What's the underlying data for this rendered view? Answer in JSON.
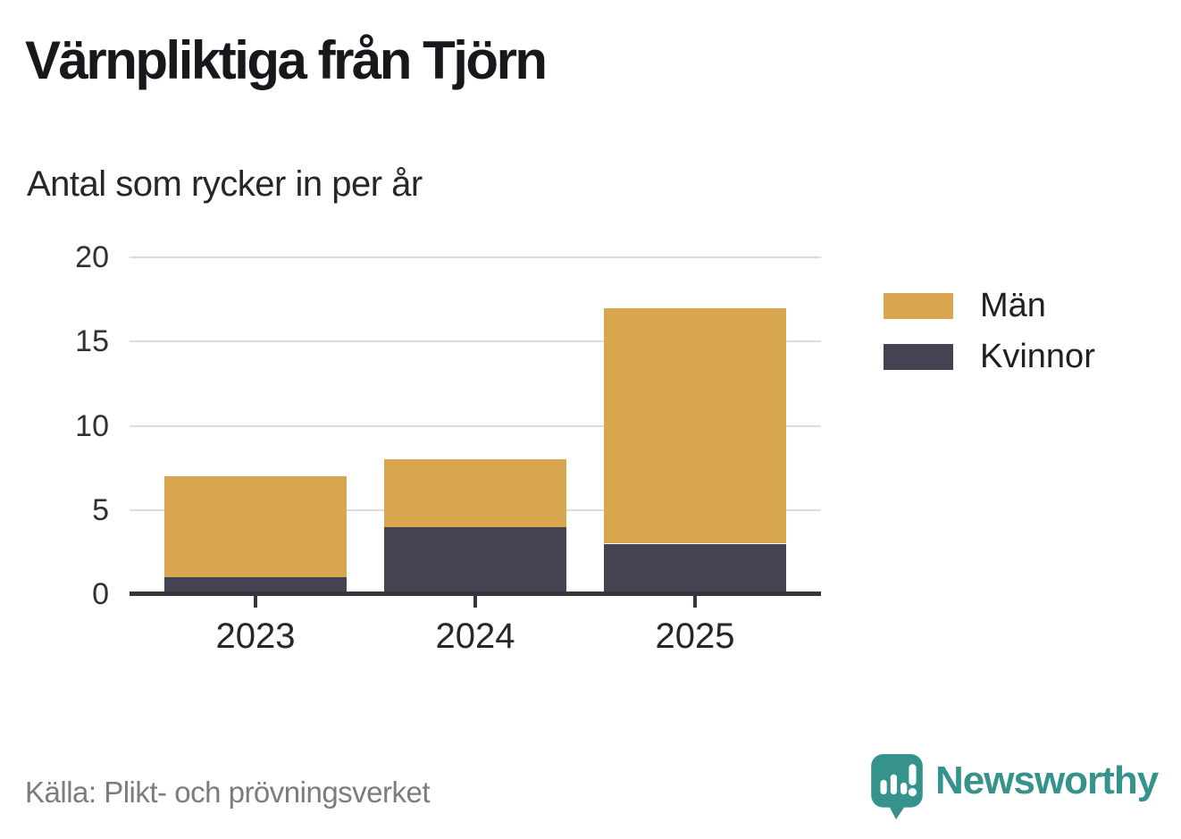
{
  "title": "Värnpliktiga från Tjörn",
  "subtitle": "Antal som rycker in per år",
  "source": "Källa: Plikt- och prövningsverket",
  "brand": {
    "name": "Newsworthy",
    "color": "#35938b",
    "logo_icon": "speech-bubble-bar-chart-icon"
  },
  "colors": {
    "men": "#d7a64f",
    "women": "#454252",
    "axis": "#37363c",
    "gridline": "#dcdcdc",
    "text_dark": "#1c1c21",
    "text_muted": "#7c7c80"
  },
  "legend": [
    {
      "label": "Män",
      "color": "#d7a64f"
    },
    {
      "label": "Kvinnor",
      "color": "#454252"
    }
  ],
  "chart_data": {
    "type": "bar",
    "stacked": true,
    "title": "Värnpliktiga från Tjörn",
    "subtitle": "Antal som rycker in per år",
    "categories": [
      "2023",
      "2024",
      "2025"
    ],
    "series": [
      {
        "name": "Kvinnor",
        "color": "#454252",
        "values": [
          1,
          4,
          3
        ]
      },
      {
        "name": "Män",
        "color": "#d7a64f",
        "values": [
          6,
          4,
          14
        ]
      }
    ],
    "totals": [
      7,
      8,
      17
    ],
    "xlabel": "",
    "ylabel": "",
    "ylim": [
      0,
      20
    ],
    "yticks": [
      0,
      5,
      10,
      15,
      20
    ],
    "grid": true,
    "legend_position": "right",
    "source": "Källa: Plikt- och prövningsverket"
  }
}
